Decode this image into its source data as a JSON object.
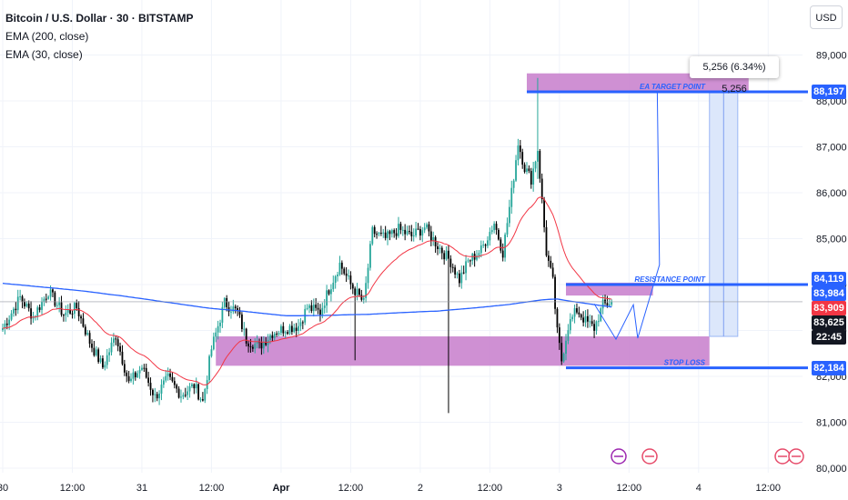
{
  "legend": {
    "title": "Bitcoin / U.S. Dollar · 30 · BITSTAMP",
    "ema200": "EMA (200, close)",
    "ema30": "EMA (30, close)"
  },
  "currency_button": "USD",
  "measure_label": "5,256 (6.34%) 5,256",
  "colors": {
    "bull": "#26a69a",
    "bear": "#000000",
    "ema200": "#2962ff",
    "ema30": "#f23645",
    "zone": "#c77dcb",
    "level": "#2962ff",
    "projection": "#dce7fb"
  },
  "price_labels": [
    {
      "text": "88,197",
      "color": "#2962ff",
      "price": 88197
    },
    {
      "text": "84,119",
      "color": "#2962ff",
      "price": 84119
    },
    {
      "text": "83,984",
      "color": "#2962ff",
      "price": 83984
    },
    {
      "text": "83,909",
      "color": "#f23645",
      "price": 83909
    },
    {
      "text": "83,625",
      "color": "#131722",
      "price": 83625
    },
    {
      "text": "22:45",
      "color": "#131722",
      "price": 83625,
      "sub": true
    },
    {
      "text": "82,184",
      "color": "#2962ff",
      "price": 82184
    }
  ],
  "chart_data": {
    "type": "candlestick",
    "symbol": "Bitcoin / U.S. Dollar · 30 · BITSTAMP",
    "y_ticks": [
      "80,000",
      "81,000",
      "82,000",
      "83,000",
      "84,000",
      "85,000",
      "86,000",
      "87,000",
      "88,000",
      "89,000"
    ],
    "ylim": [
      79900,
      90000
    ],
    "x_ticks": [
      "30",
      "12:00",
      "31",
      "12:00",
      "Apr",
      "12:00",
      "2",
      "12:00",
      "3",
      "12:00",
      "4",
      "12:00"
    ],
    "x_tick_index": [
      0,
      32,
      64,
      96,
      128,
      160,
      192,
      224,
      256,
      288,
      320,
      352
    ],
    "current_price": 83625,
    "annotations": [
      {
        "label": "EA TARGET POINT",
        "price": 88197
      },
      {
        "label": "RESISTANCE POINT",
        "price": 84000
      },
      {
        "label": "STOP LOSS",
        "price": 82184
      }
    ],
    "zones": [
      {
        "name": "target",
        "low": 88200,
        "high": 88600,
        "from_index": 241,
        "to_index": 343
      },
      {
        "name": "resistance",
        "low": 83760,
        "high": 84040,
        "from_index": 259,
        "to_index": 299
      },
      {
        "name": "support",
        "low": 82230,
        "high": 82870,
        "from_index": 98,
        "to_index": 325
      }
    ],
    "projection": {
      "from_index": 325,
      "to_index": 338,
      "low": 82870,
      "high": 88197
    },
    "path_points": [
      [
        272,
        83580
      ],
      [
        282,
        82810
      ],
      [
        290,
        83560
      ],
      [
        292,
        82830
      ],
      [
        302,
        84430
      ],
      [
        301,
        88180
      ]
    ],
    "anchors": [
      {
        "index": 0,
        "price": 83050
      },
      {
        "index": 8,
        "price": 83720
      },
      {
        "index": 14,
        "price": 83300
      },
      {
        "index": 21,
        "price": 83850
      },
      {
        "index": 28,
        "price": 83350
      },
      {
        "index": 34,
        "price": 83500
      },
      {
        "index": 40,
        "price": 82750
      },
      {
        "index": 46,
        "price": 82200
      },
      {
        "index": 52,
        "price": 82900
      },
      {
        "index": 58,
        "price": 81850
      },
      {
        "index": 64,
        "price": 82200
      },
      {
        "index": 70,
        "price": 81550
      },
      {
        "index": 76,
        "price": 81950
      },
      {
        "index": 82,
        "price": 81600
      },
      {
        "index": 88,
        "price": 81800
      },
      {
        "index": 92,
        "price": 81450
      },
      {
        "index": 96,
        "price": 82600
      },
      {
        "index": 102,
        "price": 83600
      },
      {
        "index": 108,
        "price": 83400
      },
      {
        "index": 112,
        "price": 82800
      },
      {
        "index": 118,
        "price": 82650
      },
      {
        "index": 124,
        "price": 82950
      },
      {
        "index": 130,
        "price": 83050
      },
      {
        "index": 136,
        "price": 83100
      },
      {
        "index": 140,
        "price": 83500
      },
      {
        "index": 146,
        "price": 83400
      },
      {
        "index": 150,
        "price": 83900
      },
      {
        "index": 155,
        "price": 84450
      },
      {
        "index": 160,
        "price": 84000
      },
      {
        "index": 166,
        "price": 83600
      },
      {
        "index": 170,
        "price": 85150
      },
      {
        "index": 176,
        "price": 85000
      },
      {
        "index": 182,
        "price": 85200
      },
      {
        "index": 188,
        "price": 85050
      },
      {
        "index": 194,
        "price": 85250
      },
      {
        "index": 200,
        "price": 84850
      },
      {
        "index": 206,
        "price": 84500
      },
      {
        "index": 210,
        "price": 84100
      },
      {
        "index": 214,
        "price": 84500
      },
      {
        "index": 220,
        "price": 84750
      },
      {
        "index": 226,
        "price": 85350
      },
      {
        "index": 230,
        "price": 84700
      },
      {
        "index": 234,
        "price": 86000
      },
      {
        "index": 237,
        "price": 87100
      },
      {
        "index": 240,
        "price": 86550
      },
      {
        "index": 243,
        "price": 86300
      },
      {
        "index": 246,
        "price": 86950
      },
      {
        "index": 248,
        "price": 85800
      },
      {
        "index": 250,
        "price": 84700
      },
      {
        "index": 253,
        "price": 84050
      },
      {
        "index": 255,
        "price": 82950
      },
      {
        "index": 257,
        "price": 82350
      },
      {
        "index": 260,
        "price": 83100
      },
      {
        "index": 264,
        "price": 83450
      },
      {
        "index": 268,
        "price": 83200
      },
      {
        "index": 272,
        "price": 83050
      },
      {
        "index": 276,
        "price": 83550
      },
      {
        "index": 280,
        "price": 83625
      }
    ],
    "spikes": [
      {
        "index": 162,
        "high": 83800,
        "low": 82350
      },
      {
        "index": 205,
        "high": 84400,
        "low": 81200
      },
      {
        "index": 246,
        "high": 88500,
        "low": 86300
      }
    ]
  }
}
